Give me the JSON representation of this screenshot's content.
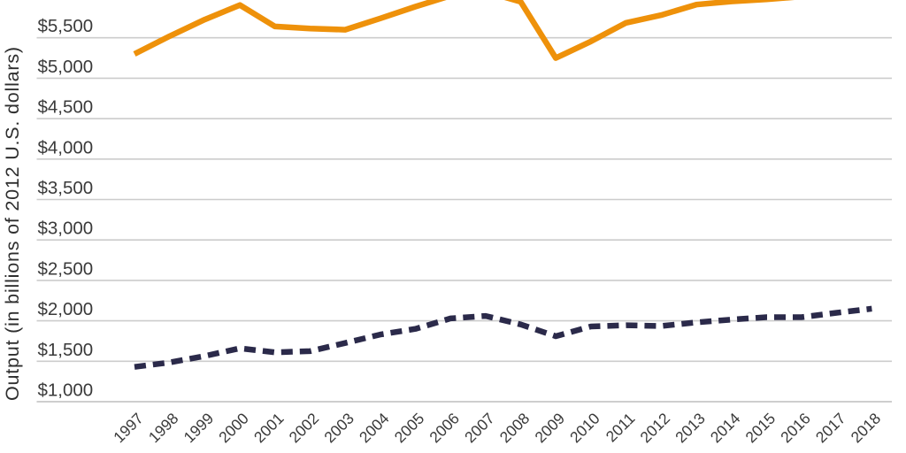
{
  "figure": {
    "y_axis_title": "Output (in billions of 2012 U.S. dollars)"
  },
  "chart_data": {
    "type": "line",
    "x": [
      1997,
      1998,
      1999,
      2000,
      2001,
      2002,
      2003,
      2004,
      2005,
      2006,
      2007,
      2008,
      2009,
      2010,
      2011,
      2012,
      2013,
      2014,
      2015,
      2016,
      2017,
      2018
    ],
    "x_tick_labels": [
      "1997",
      "1998",
      "1999",
      "2000",
      "2001",
      "2002",
      "2003",
      "2004",
      "2005",
      "2006",
      "2007",
      "2008",
      "2009",
      "2010",
      "2011",
      "2012",
      "2013",
      "2014",
      "2015",
      "2016",
      "2017",
      "2018"
    ],
    "y_axis": {
      "title": "Output (in billions of 2012 U.S. dollars)",
      "ticks": [
        5500,
        5000,
        4500,
        4000,
        3500,
        3000,
        2500,
        2000,
        1500,
        1000
      ],
      "tick_labels": [
        "$5,500",
        "$5,000",
        "$4,500",
        "$4,000",
        "$3,500",
        "$3,000",
        "$2,500",
        "$2,000",
        "$1,500",
        "$1,000"
      ]
    },
    "series": [
      {
        "name": "solid-orange-output-line",
        "line_style": "solid",
        "color": "#ee910a",
        "values": [
          5300,
          5520,
          5725,
          5905,
          5640,
          5615,
          5600,
          5740,
          5885,
          6020,
          6070,
          5945,
          5250,
          5455,
          5685,
          5780,
          5910,
          5950,
          5975,
          6010,
          6060,
          6110
        ]
      },
      {
        "name": "dashed-navy-output-line",
        "line_style": "dashed",
        "color": "#2b2a4a",
        "values": [
          1430,
          1485,
          1565,
          1660,
          1610,
          1625,
          1725,
          1830,
          1900,
          2030,
          2060,
          1955,
          1810,
          1930,
          1945,
          1935,
          1980,
          2015,
          2045,
          2045,
          2100,
          2150
        ]
      }
    ],
    "grid": "horizontal-only",
    "legend_position": "none-visible",
    "visible_value_range": [
      1000,
      5960
    ],
    "crop_note": "Top of chart is cropped: solid orange series rises above the visible area in 2006-2007 and 2015-2018; values above ~5,960 are estimates."
  },
  "colors": {
    "background": "#ffffff",
    "grid_line": "#cccccc",
    "bottom_grid_line": "#bdbdbd",
    "tick_text": "#3a3a3a",
    "series_orange": "#ee910a",
    "series_navy": "#2b2a4a"
  }
}
